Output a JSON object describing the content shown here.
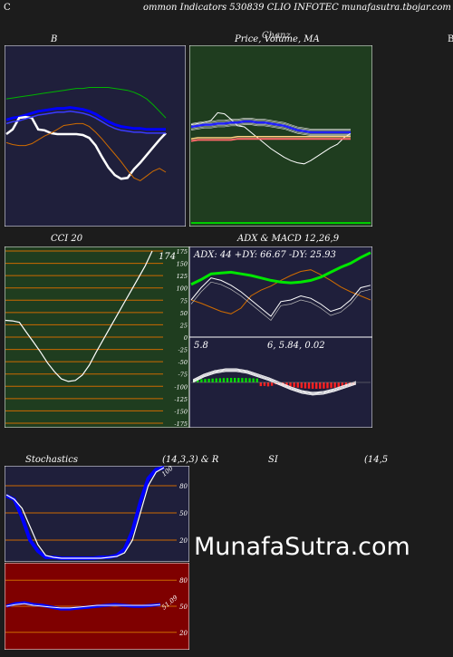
{
  "header": {
    "left_char": "C",
    "title": "ommon  Indicators 530839 CLIO INFOTEC munafasutra.tbojar.com"
  },
  "titles": {
    "bb": "B",
    "price": "Price,  Volume,  MA",
    "price_ghost": "Chanz",
    "right_edge": "B",
    "cci": "CCI 20",
    "adx": "ADX  & MACD 12,26,9",
    "stoch": "Stochastics",
    "stoch_params": "(14,3,3) & R",
    "rsi": "SI",
    "rsi_params": "(14,5"
  },
  "adx_readout": "ADX: 44   +DY: 66.67 -DY: 25.93",
  "macd_readout": {
    "left": "5.8",
    "right": "6,  5.84,  0.02"
  },
  "cci_value_label": "174",
  "stoch_side_label": "100",
  "rsi_side_label": "51.09",
  "watermark": "MunafaSutra.com",
  "colors": {
    "navy": "#1f1f3b",
    "green_bg": "#1f3d1f",
    "red_bg": "#7f0000",
    "orange": "#cc6a00",
    "blue": "#1e1eff"
  },
  "chart_data": [
    {
      "type": "line",
      "title": "B",
      "series": [
        {
          "color": "#00b400",
          "values": [
            77,
            78,
            79,
            80,
            81,
            82,
            83,
            84,
            85,
            86,
            87,
            88,
            88,
            89,
            89,
            89,
            89,
            88,
            87,
            86,
            84,
            81,
            77,
            71,
            64,
            57
          ]
        },
        {
          "color": "#0000ff",
          "values": [
            55,
            57,
            58,
            60,
            62,
            64,
            65,
            66,
            67,
            67,
            68,
            67,
            66,
            64,
            61,
            57,
            53,
            50,
            48,
            47,
            46,
            46,
            45,
            45,
            45,
            45
          ]
        },
        {
          "color": "#ffffff",
          "values": [
            40,
            45,
            57,
            58,
            57,
            45,
            44,
            41,
            40,
            40,
            40,
            40,
            39,
            36,
            28,
            16,
            5,
            -3,
            -7,
            -6,
            3,
            10,
            18,
            26,
            34,
            41
          ]
        },
        {
          "color": "#d06c00",
          "values": [
            31,
            29,
            28,
            28,
            30,
            34,
            38,
            41,
            45,
            49,
            50,
            51,
            51,
            48,
            42,
            35,
            27,
            19,
            11,
            2,
            -6,
            -9,
            -4,
            1,
            4,
            0
          ]
        }
      ]
    },
    {
      "type": "line",
      "title": "Price,  Volume,  MA",
      "series": [
        {
          "name": "price",
          "color": "#ffffff",
          "values": [
            52,
            53,
            54,
            56,
            63,
            62,
            57,
            51,
            50,
            45,
            40,
            35,
            30,
            26,
            22,
            19,
            17,
            16,
            19,
            23,
            27,
            31,
            34,
            40,
            44
          ]
        },
        {
          "name": "ma",
          "color": "#2020ff",
          "values": [
            50,
            51,
            52,
            52,
            53,
            53,
            54,
            54,
            55,
            55,
            54,
            54,
            53,
            52,
            51,
            49,
            47,
            46,
            45,
            45,
            45,
            45,
            45,
            45,
            45
          ]
        },
        {
          "name": "ma2",
          "color": "#ff6a6a",
          "values": [
            37,
            38,
            38,
            38,
            38,
            38,
            38,
            39,
            39,
            39,
            39,
            39,
            39,
            39,
            39,
            39,
            39,
            39,
            39,
            39,
            39,
            39,
            39,
            39,
            39
          ]
        }
      ]
    },
    {
      "type": "line",
      "title": "CCI 20",
      "ylim": [
        -175,
        175
      ],
      "yticks": [
        175,
        150,
        125,
        100,
        75,
        50,
        25,
        0,
        -25,
        -50,
        -75,
        -100,
        -125,
        -150,
        -175
      ],
      "series": [
        {
          "color": "#ffffff",
          "values": [
            34,
            33,
            30,
            10,
            -10,
            -30,
            -52,
            -70,
            -85,
            -90,
            -88,
            -77,
            -57,
            -30,
            -5,
            20,
            45,
            70,
            95,
            120,
            145,
            175
          ]
        }
      ]
    },
    {
      "type": "line",
      "title": "ADX  & MACD 12,26,9",
      "series": [
        {
          "name": "adx",
          "color": "#00e600",
          "values": [
            59,
            65,
            72,
            73,
            74,
            72,
            70,
            67,
            64,
            62,
            61,
            62,
            64,
            68,
            74,
            80,
            85,
            92,
            98
          ]
        },
        {
          "name": "+DY",
          "color": "#ffffff",
          "values": [
            40,
            55,
            67,
            64,
            58,
            50,
            40,
            30,
            20,
            38,
            40,
            45,
            42,
            35,
            26,
            30,
            40,
            55,
            58
          ]
        },
        {
          "name": "-DY",
          "color": "#d06c00",
          "values": [
            40,
            36,
            31,
            26,
            23,
            30,
            45,
            52,
            57,
            64,
            70,
            75,
            77,
            71,
            64,
            56,
            50,
            45,
            40
          ]
        }
      ]
    },
    {
      "type": "bar",
      "title": "MACD",
      "values": [
        5.8,
        5.9,
        6.0,
        5.95,
        5.8,
        5.4,
        5.0,
        4.5,
        4.0,
        3.4,
        2.7,
        2.0,
        1.1,
        0.6,
        0.2,
        0.02
      ]
    },
    {
      "type": "line",
      "title": "Stochastics (14,3,3)",
      "yticks": [
        80,
        50,
        20
      ],
      "series": [
        {
          "name": "%K",
          "color": "#0000ff",
          "values": [
            69,
            65,
            45,
            20,
            8,
            1,
            1,
            0,
            0,
            0,
            0,
            0,
            1,
            1,
            3,
            10,
            30,
            62,
            88,
            98,
            100
          ]
        },
        {
          "name": "%D",
          "color": "#ffffff",
          "values": [
            70,
            65,
            55,
            35,
            15,
            3,
            1,
            0,
            0,
            0,
            0,
            0,
            0,
            1,
            2,
            6,
            20,
            50,
            80,
            95,
            100
          ]
        }
      ]
    },
    {
      "type": "line",
      "title": "RSI (14,5",
      "yticks": [
        80,
        50,
        20
      ],
      "series": [
        {
          "name": "rsi",
          "color": "#0000ff",
          "values": [
            50,
            53,
            54,
            52,
            51,
            49,
            47,
            47,
            48,
            49,
            50,
            51,
            52,
            51,
            50,
            50,
            51,
            52
          ]
        },
        {
          "name": "rsi_raw",
          "color": "#ffffff",
          "values": [
            50,
            52,
            53,
            51,
            50,
            49,
            48,
            48,
            49,
            50,
            51,
            51,
            51,
            51,
            51,
            51,
            51,
            52
          ]
        }
      ]
    }
  ]
}
